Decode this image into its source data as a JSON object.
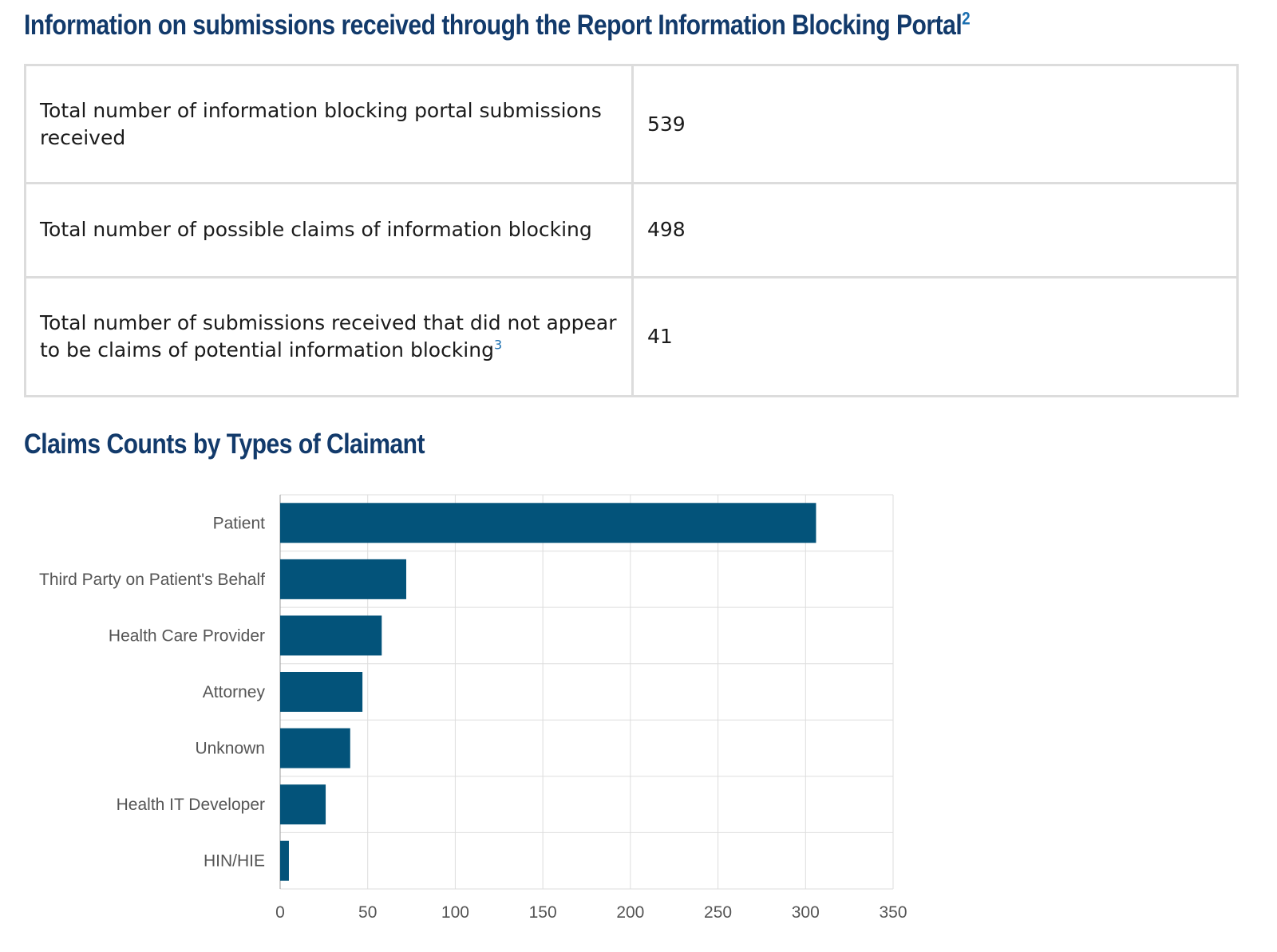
{
  "header": {
    "title": "Information on submissions received through the Report Information Blocking Portal",
    "footnote": "2"
  },
  "summary_table": {
    "rows": [
      {
        "label": "Total number of information blocking portal submissions received",
        "value": "539",
        "footnote": ""
      },
      {
        "label": "Total number of possible claims of information blocking",
        "value": "498",
        "footnote": ""
      },
      {
        "label": "Total number of submissions received that did not appear to be claims of potential information blocking",
        "value": "41",
        "footnote": "3"
      }
    ]
  },
  "chart_data": {
    "type": "bar",
    "orientation": "horizontal",
    "title": "Claims Counts by Types of Claimant",
    "categories": [
      "Patient",
      "Third Party on Patient's Behalf",
      "Health Care Provider",
      "Attorney",
      "Unknown",
      "Health IT Developer",
      "HIN/HIE"
    ],
    "values": [
      306,
      72,
      58,
      47,
      40,
      26,
      5
    ],
    "xlim": [
      0,
      350
    ],
    "xticks": [
      0,
      50,
      100,
      150,
      200,
      250,
      300,
      350
    ],
    "xlabel": "",
    "ylabel": "",
    "grid": true,
    "legend": "none",
    "bar_color": "#03537a",
    "grid_color": "#dddddd"
  }
}
